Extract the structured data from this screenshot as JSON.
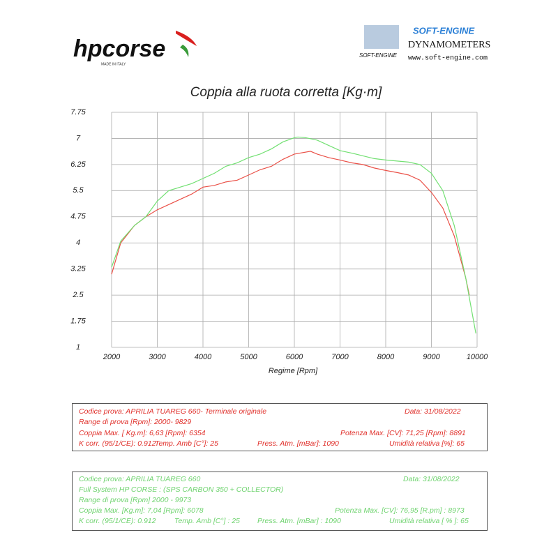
{
  "header": {
    "brand": "hpcorse",
    "brand_tagline": "MADE IN ITALY",
    "dyno_brand": "SOFT-ENGINE",
    "dyno_subtitle": "DYNAMOMETERS",
    "dyno_url": "www.soft-engine.com",
    "dyno_logo_text": "SOFT-ENGINE"
  },
  "chart_data": {
    "type": "line",
    "title": "Coppia alla ruota corretta [Kg·m]",
    "x_label": "Regime [Rpm]",
    "xlim": [
      2000,
      10000
    ],
    "xticks": [
      2000,
      3000,
      4000,
      5000,
      6000,
      7000,
      8000,
      9000,
      10000
    ],
    "ylim": [
      1,
      7.75
    ],
    "yticks": [
      1,
      1.75,
      2.5,
      3.25,
      4,
      4.75,
      5.5,
      6.25,
      7,
      7.75
    ],
    "grid": true,
    "series": [
      {
        "color": "#ea5148",
        "x": [
          2000,
          2200,
          2500,
          2750,
          3000,
          3250,
          3500,
          3750,
          4000,
          4250,
          4500,
          4750,
          5000,
          5250,
          5500,
          5750,
          6000,
          6354,
          6500,
          6750,
          7000,
          7250,
          7500,
          7750,
          8000,
          8250,
          8500,
          8750,
          9000,
          9250,
          9500,
          9750,
          9829
        ],
        "values": [
          3.1,
          4.0,
          4.5,
          4.75,
          4.95,
          5.1,
          5.25,
          5.4,
          5.6,
          5.65,
          5.75,
          5.8,
          5.95,
          6.1,
          6.2,
          6.4,
          6.55,
          6.63,
          6.55,
          6.45,
          6.38,
          6.3,
          6.25,
          6.15,
          6.08,
          6.02,
          5.95,
          5.8,
          5.45,
          5.0,
          4.2,
          3.0,
          2.5
        ]
      },
      {
        "color": "#72e072",
        "x": [
          2000,
          2200,
          2500,
          2750,
          3000,
          3250,
          3500,
          3750,
          4000,
          4250,
          4500,
          4750,
          5000,
          5250,
          5500,
          5750,
          6000,
          6078,
          6250,
          6500,
          6750,
          7000,
          7250,
          7500,
          7750,
          8000,
          8250,
          8500,
          8750,
          9000,
          9250,
          9500,
          9750,
          9973
        ],
        "values": [
          3.3,
          4.05,
          4.5,
          4.75,
          5.2,
          5.5,
          5.6,
          5.7,
          5.85,
          6.0,
          6.2,
          6.3,
          6.45,
          6.55,
          6.7,
          6.9,
          7.02,
          7.04,
          7.02,
          6.95,
          6.8,
          6.65,
          6.58,
          6.5,
          6.42,
          6.38,
          6.35,
          6.32,
          6.25,
          6.0,
          5.5,
          4.5,
          3.0,
          1.4
        ]
      }
    ]
  },
  "info_boxes": [
    {
      "rows": [
        [
          "Codice prova: APRILIA TUAREG 660- Terminale originale",
          "Data: 31/08/2022"
        ],
        [
          "Range di prova [Rpm]: 2000- 9829"
        ],
        [
          "Coppia Max. [ Kg.m]: 6,63 [Rpm]: 6354",
          "Potenza Max. [CV]: 71,25 [Rpm]: 8891"
        ],
        [
          "K corr. (95/1/CE): 0.912",
          "Temp. Amb [C°]: 25",
          "Press. Atm. [mBar]: 1090",
          "Umidità relativa [%]: 65"
        ]
      ]
    },
    {
      "rows": [
        [
          "Codice prova: APRILIA TUAREG 660",
          "Data: 31/08/2022"
        ],
        [
          "Full System HP CORSE : (SPS CARBON 350 + COLLECTOR)"
        ],
        [
          "Range di prova [Rpm] 2000 - 9973"
        ],
        [
          "Coppia Max. [Kg.m]: 7,04 [Rpm]: 6078",
          "Potenza Max. [CV]: 76,95 [R.pm] : 8973"
        ],
        [
          "K corr. (95/1/CE): 0.912",
          "Temp. Amb [C°] : 25",
          "Press. Atm. [mBar] : 1090",
          "Umidità relativa [ % ]: 65"
        ]
      ]
    }
  ]
}
